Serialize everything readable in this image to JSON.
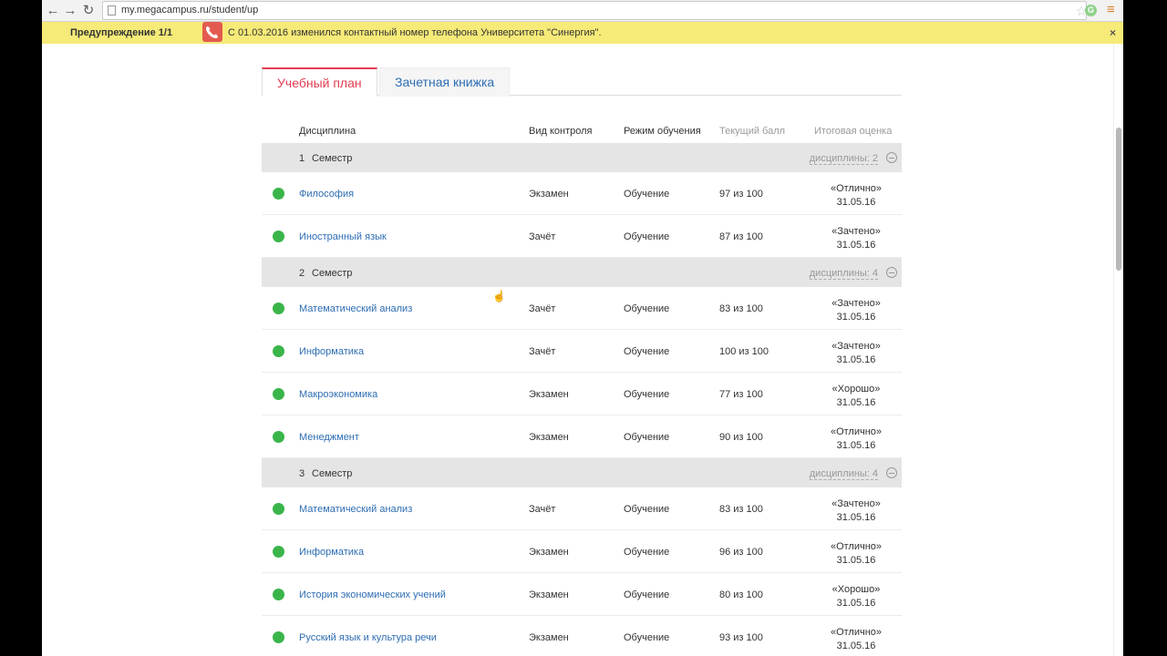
{
  "browser": {
    "url": "my.megacampus.ru/student/up",
    "back_icon": "arrow-left-icon",
    "forward_icon": "arrow-right-icon",
    "reload_icon": "reload-icon",
    "back_glyph": "←",
    "forward_glyph": "→",
    "reload_glyph": "↻",
    "star_glyph": "☆",
    "menu_glyph": "≡"
  },
  "notice": {
    "warning": "Предупреждение 1/1",
    "message": "С 01.03.2016 изменился контактный номер телефона Университета \"Синергия\".",
    "close": "×"
  },
  "page": {
    "heading": "Учебный план"
  },
  "tabs": [
    {
      "label": "Учебный план",
      "active": true
    },
    {
      "label": "Зачетная книжка",
      "active": false
    }
  ],
  "table": {
    "headers": {
      "discipline": "Дисциплина",
      "control": "Вид контроля",
      "mode": "Режим обучения",
      "score": "Текущий балл",
      "grade": "Итоговая оценка"
    },
    "semesters": [
      {
        "number": "1",
        "label": "Семестр",
        "count": "дисциплины: 2",
        "rows": [
          {
            "name": "Философия",
            "control": "Экзамен",
            "mode": "Обучение",
            "score": "97 из 100",
            "grade": "«Отлично»",
            "date": "31.05.16"
          },
          {
            "name": "Иностранный язык",
            "control": "Зачёт",
            "mode": "Обучение",
            "score": "87 из 100",
            "grade": "«Зачтено»",
            "date": "31.05.16"
          }
        ]
      },
      {
        "number": "2",
        "label": "Семестр",
        "count": "дисциплины: 4",
        "rows": [
          {
            "name": "Математический анализ",
            "control": "Зачёт",
            "mode": "Обучение",
            "score": "83 из 100",
            "grade": "«Зачтено»",
            "date": "31.05.16"
          },
          {
            "name": "Информатика",
            "control": "Зачёт",
            "mode": "Обучение",
            "score": "100 из 100",
            "grade": "«Зачтено»",
            "date": "31.05.16"
          },
          {
            "name": "Макроэкономика",
            "control": "Экзамен",
            "mode": "Обучение",
            "score": "77 из 100",
            "grade": "«Хорошо»",
            "date": "31.05.16"
          },
          {
            "name": "Менеджмент",
            "control": "Экзамен",
            "mode": "Обучение",
            "score": "90 из 100",
            "grade": "«Отлично»",
            "date": "31.05.16"
          }
        ]
      },
      {
        "number": "3",
        "label": "Семестр",
        "count": "дисциплины: 4",
        "rows": [
          {
            "name": "Математический анализ",
            "control": "Зачёт",
            "mode": "Обучение",
            "score": "83 из 100",
            "grade": "«Зачтено»",
            "date": "31.05.16"
          },
          {
            "name": "Информатика",
            "control": "Экзамен",
            "mode": "Обучение",
            "score": "96 из 100",
            "grade": "«Отлично»",
            "date": "31.05.16"
          },
          {
            "name": "История экономических учений",
            "control": "Экзамен",
            "mode": "Обучение",
            "score": "80 из 100",
            "grade": "«Хорошо»",
            "date": "31.05.16"
          },
          {
            "name": "Русский язык и культура речи",
            "control": "Экзамен",
            "mode": "Обучение",
            "score": "93 из 100",
            "grade": "«Отлично»",
            "date": "31.05.16"
          }
        ]
      }
    ]
  },
  "colors": {
    "accent": "#e33d51",
    "link": "#2d6db3",
    "status_ok": "#3ab54a",
    "notice_bg": "#f6ea78"
  }
}
